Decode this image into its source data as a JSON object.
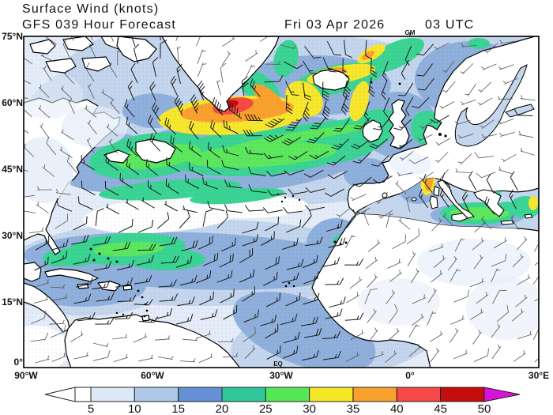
{
  "header": {
    "title": "Surface Wind (knots)",
    "model_line": "GFS 039 Hour Forecast",
    "valid_date": "Fri 03 Apr 2026",
    "valid_time": "03 UTC"
  },
  "axes": {
    "lat": [
      "75°N",
      "60°N",
      "45°N",
      "30°N",
      "15°N",
      "0°"
    ],
    "lon": [
      "90°W",
      "60°W",
      "30°W",
      "0°",
      "30°E"
    ],
    "meridian_label": "GM",
    "equator_label": "EQ"
  },
  "colorbar": {
    "values": [
      "5",
      "10",
      "15",
      "20",
      "25",
      "30",
      "35",
      "40",
      "45",
      "50"
    ],
    "segment_colors": [
      "#ffffff",
      "#dde9f8",
      "#b0c9e8",
      "#6590d5",
      "#2fc898",
      "#55e856",
      "#f5e626",
      "#f8a22d",
      "#f64848",
      "#c60d0d"
    ],
    "overflow_color": "#d812d8"
  },
  "palette": {
    "l1": "#e3ecf8",
    "l2": "#c4d6ed",
    "l3": "#8fb0dc",
    "green": "#3bd494",
    "bright_green": "#5ce75e",
    "yellow": "#f6e62e",
    "orange": "#f9a02e",
    "red": "#f54a42",
    "dark_red": "#c60d0d",
    "land": "#ffffff",
    "coast": "#000000",
    "barb": "#1a1a1a",
    "barb_weak": "#555555"
  }
}
